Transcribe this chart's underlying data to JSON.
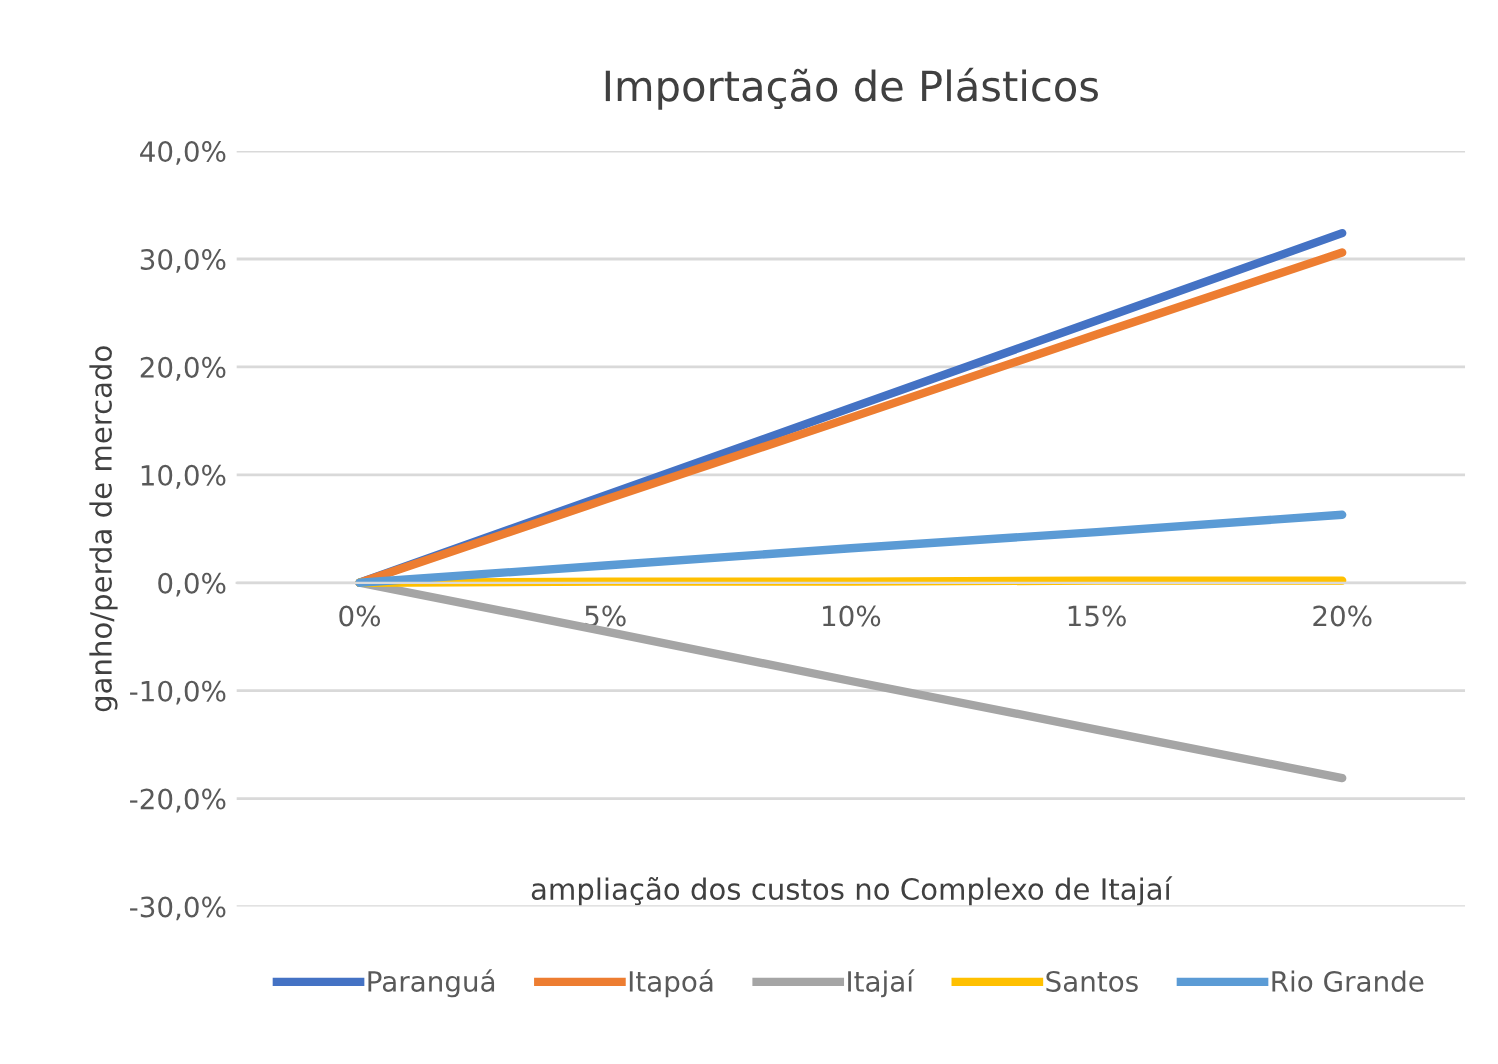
{
  "chart_data": {
    "type": "line",
    "title": "Importação de Plásticos",
    "xlabel": "ampliação dos custos no Complexo de Itajaí",
    "ylabel": "ganho/perda de mercado",
    "categories": [
      "0%",
      "5%",
      "10%",
      "15%",
      "20%"
    ],
    "series": [
      {
        "name": "Paranguá",
        "color": "#4472c4",
        "values": [
          0,
          8.1,
          16.2,
          24.3,
          32.4
        ]
      },
      {
        "name": "Itapoá",
        "color": "#ed7d31",
        "values": [
          0,
          7.7,
          15.3,
          23.0,
          30.6
        ]
      },
      {
        "name": "Itajaí",
        "color": "#a5a5a5",
        "values": [
          0,
          -4.5,
          -9.1,
          -13.6,
          -18.1
        ]
      },
      {
        "name": "Santos",
        "color": "#ffc000",
        "values": [
          0,
          0.1,
          0.1,
          0.2,
          0.2
        ]
      },
      {
        "name": "Rio Grande",
        "color": "#5b9bd5",
        "values": [
          0,
          1.6,
          3.2,
          4.7,
          6.3
        ]
      }
    ],
    "ylim": [
      -30,
      40
    ],
    "yticks": [
      {
        "value": -30,
        "label": "-30,0%"
      },
      {
        "value": -20,
        "label": "-20,0%"
      },
      {
        "value": -10,
        "label": "-10,0%"
      },
      {
        "value": 0,
        "label": "0,0%"
      },
      {
        "value": 10,
        "label": "10,0%"
      },
      {
        "value": 20,
        "label": "20,0%"
      },
      {
        "value": 30,
        "label": "30,0%"
      },
      {
        "value": 40,
        "label": "40,0%"
      }
    ],
    "grid": "y",
    "legend": "bottom",
    "marker": "none",
    "line_style": "solid"
  }
}
